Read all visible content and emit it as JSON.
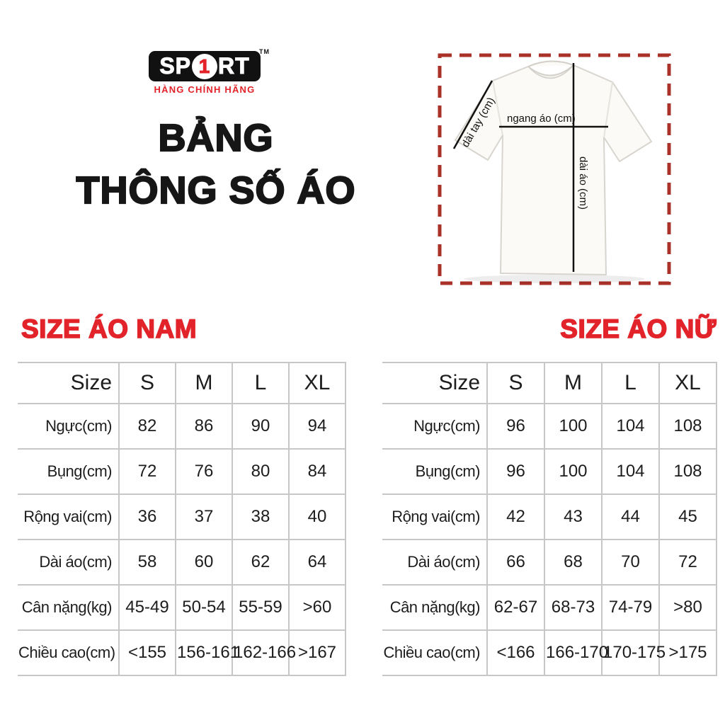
{
  "brand": {
    "logo_text_left": "SP",
    "logo_number": "1",
    "logo_text_right": "RT",
    "trademark": "TM",
    "tagline": "HÀNG CHÍNH HÃNG"
  },
  "title": {
    "line1": "BẢNG",
    "line2": "THÔNG SỐ ÁO"
  },
  "diagram": {
    "sleeve_label": "dài tay (cm)",
    "width_label": "ngang áo (cm)",
    "length_label": "dài áo (cm)"
  },
  "colors": {
    "accent_red": "#e2232a",
    "dashed_border_red": "#a93128",
    "table_border_gray": "#c7c7c7",
    "text_black": "#1d1d1d"
  },
  "size_tables": {
    "men": {
      "title": "SIZE ÁO NAM",
      "columns": [
        "Size",
        "S",
        "M",
        "L",
        "XL"
      ],
      "rows": [
        [
          "Ngực(cm)",
          "82",
          "86",
          "90",
          "94"
        ],
        [
          "Bụng(cm)",
          "72",
          "76",
          "80",
          "84"
        ],
        [
          "Rộng vai(cm)",
          "36",
          "37",
          "38",
          "40"
        ],
        [
          "Dài áo(cm)",
          "58",
          "60",
          "62",
          "64"
        ],
        [
          "Cân nặng(kg)",
          "45-49",
          "50-54",
          "55-59",
          ">60"
        ],
        [
          "Chiều cao(cm)",
          "<155",
          "156-161",
          "162-166",
          ">167"
        ]
      ]
    },
    "women": {
      "title": "SIZE ÁO NỮ",
      "columns": [
        "Size",
        "S",
        "M",
        "L",
        "XL"
      ],
      "rows": [
        [
          "Ngực(cm)",
          "96",
          "100",
          "104",
          "108"
        ],
        [
          "Bụng(cm)",
          "96",
          "100",
          "104",
          "108"
        ],
        [
          "Rộng vai(cm)",
          "42",
          "43",
          "44",
          "45"
        ],
        [
          "Dài áo(cm)",
          "66",
          "68",
          "70",
          "72"
        ],
        [
          "Cân nặng(kg)",
          "62-67",
          "68-73",
          "74-79",
          ">80"
        ],
        [
          "Chiều cao(cm)",
          "<166",
          "166-170",
          "170-175",
          ">175"
        ]
      ]
    }
  }
}
